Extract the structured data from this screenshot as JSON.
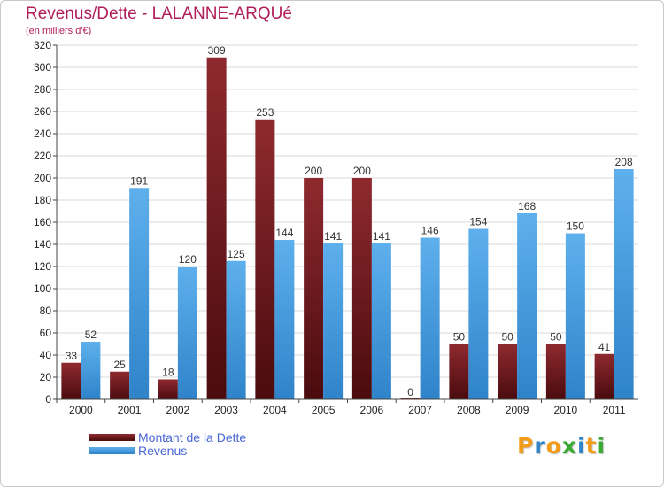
{
  "title": "Revenus/Dette - LALANNE-ARQUé",
  "subtitle": "(en milliers d'€)",
  "colors": {
    "dette_top": "#8e2a2f",
    "dette_bottom": "#4a0b0e",
    "revenus_top": "#5eb0ec",
    "revenus_bottom": "#2f83c9",
    "grid": "#d8d8d8",
    "axis": "#444444"
  },
  "legend": {
    "dette_label": "Montant de la Dette",
    "revenus_label": "Revenus"
  },
  "logo": {
    "text": "Proxiti"
  },
  "chart_data": {
    "type": "bar",
    "title": "Revenus/Dette - LALANNE-ARQUé",
    "subtitle": "(en milliers d'€)",
    "xlabel": "",
    "ylabel": "",
    "categories": [
      "2000",
      "2001",
      "2002",
      "2003",
      "2004",
      "2005",
      "2006",
      "2007",
      "2008",
      "2009",
      "2010",
      "2011"
    ],
    "series": [
      {
        "name": "Montant de la Dette",
        "values": [
          33,
          25,
          18,
          309,
          253,
          200,
          200,
          0,
          50,
          50,
          50,
          41
        ]
      },
      {
        "name": "Revenus",
        "values": [
          52,
          191,
          120,
          125,
          144,
          141,
          141,
          146,
          154,
          168,
          150,
          208
        ]
      }
    ],
    "ylim": [
      0,
      320
    ],
    "yticks": [
      0,
      20,
      40,
      60,
      80,
      100,
      120,
      140,
      160,
      180,
      200,
      220,
      240,
      260,
      280,
      300,
      320
    ],
    "grid": true,
    "legend_position": "bottom-left"
  }
}
